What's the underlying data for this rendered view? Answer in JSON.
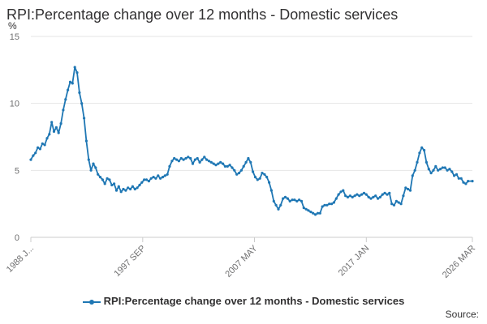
{
  "chart_data": {
    "type": "line",
    "title": "RPI:Percentage change over 12 months - Domestic services",
    "y_unit_label": "%",
    "x_tick_labels": [
      "1988 J...",
      "1997 SEP",
      "2007 MAY",
      "2017 JAN",
      "2026 MAR"
    ],
    "x_tick_positions": [
      1988.0,
      1997.67,
      2007.33,
      2017.0,
      2026.17
    ],
    "xlim": [
      1988.0,
      2026.17
    ],
    "ylim": [
      0,
      15
    ],
    "y_ticks": [
      0,
      5,
      10,
      15
    ],
    "grid": true,
    "legend_position": "bottom",
    "series": [
      {
        "name": "RPI:Percentage change over 12 months - Domestic services",
        "color": "#1f77b4",
        "points": [
          [
            1988.0,
            5.8
          ],
          [
            1988.2,
            6.1
          ],
          [
            1988.4,
            6.3
          ],
          [
            1988.6,
            6.7
          ],
          [
            1988.8,
            6.6
          ],
          [
            1989.0,
            7.0
          ],
          [
            1989.2,
            6.9
          ],
          [
            1989.4,
            7.4
          ],
          [
            1989.6,
            7.7
          ],
          [
            1989.8,
            8.6
          ],
          [
            1990.0,
            7.9
          ],
          [
            1990.2,
            8.2
          ],
          [
            1990.4,
            7.8
          ],
          [
            1990.6,
            8.5
          ],
          [
            1990.8,
            9.5
          ],
          [
            1991.0,
            10.3
          ],
          [
            1991.2,
            11.0
          ],
          [
            1991.4,
            11.6
          ],
          [
            1991.6,
            11.5
          ],
          [
            1991.8,
            12.7
          ],
          [
            1992.0,
            12.3
          ],
          [
            1992.2,
            10.8
          ],
          [
            1992.4,
            10.0
          ],
          [
            1992.6,
            8.9
          ],
          [
            1992.8,
            7.2
          ],
          [
            1993.0,
            5.8
          ],
          [
            1993.2,
            5.0
          ],
          [
            1993.4,
            5.5
          ],
          [
            1993.6,
            5.2
          ],
          [
            1993.8,
            4.7
          ],
          [
            1994.0,
            4.5
          ],
          [
            1994.2,
            4.3
          ],
          [
            1994.4,
            4.0
          ],
          [
            1994.6,
            4.4
          ],
          [
            1994.8,
            4.3
          ],
          [
            1995.0,
            3.9
          ],
          [
            1995.2,
            4.0
          ],
          [
            1995.4,
            3.5
          ],
          [
            1995.6,
            3.8
          ],
          [
            1995.8,
            3.4
          ],
          [
            1996.0,
            3.6
          ],
          [
            1996.2,
            3.5
          ],
          [
            1996.4,
            3.7
          ],
          [
            1996.6,
            3.6
          ],
          [
            1996.8,
            3.8
          ],
          [
            1997.0,
            3.6
          ],
          [
            1997.2,
            3.7
          ],
          [
            1997.4,
            3.9
          ],
          [
            1997.6,
            4.1
          ],
          [
            1997.8,
            4.3
          ],
          [
            1998.0,
            4.3
          ],
          [
            1998.2,
            4.2
          ],
          [
            1998.4,
            4.4
          ],
          [
            1998.6,
            4.5
          ],
          [
            1998.8,
            4.4
          ],
          [
            1999.0,
            4.6
          ],
          [
            1999.2,
            4.4
          ],
          [
            1999.4,
            4.5
          ],
          [
            1999.6,
            4.6
          ],
          [
            1999.8,
            4.7
          ],
          [
            2000.0,
            5.3
          ],
          [
            2000.2,
            5.7
          ],
          [
            2000.4,
            5.9
          ],
          [
            2000.6,
            5.8
          ],
          [
            2000.8,
            5.7
          ],
          [
            2001.0,
            5.9
          ],
          [
            2001.2,
            5.8
          ],
          [
            2001.4,
            5.9
          ],
          [
            2001.6,
            6.0
          ],
          [
            2001.8,
            5.9
          ],
          [
            2002.0,
            5.5
          ],
          [
            2002.2,
            5.8
          ],
          [
            2002.4,
            5.9
          ],
          [
            2002.6,
            5.6
          ],
          [
            2002.8,
            5.8
          ],
          [
            2003.0,
            6.0
          ],
          [
            2003.2,
            5.8
          ],
          [
            2003.4,
            5.7
          ],
          [
            2003.6,
            5.6
          ],
          [
            2003.8,
            5.5
          ],
          [
            2004.0,
            5.4
          ],
          [
            2004.2,
            5.5
          ],
          [
            2004.4,
            5.6
          ],
          [
            2004.6,
            5.5
          ],
          [
            2004.8,
            5.3
          ],
          [
            2005.0,
            5.3
          ],
          [
            2005.2,
            5.4
          ],
          [
            2005.4,
            5.2
          ],
          [
            2005.6,
            5.0
          ],
          [
            2005.8,
            4.7
          ],
          [
            2006.0,
            4.8
          ],
          [
            2006.2,
            5.0
          ],
          [
            2006.4,
            5.3
          ],
          [
            2006.6,
            5.6
          ],
          [
            2006.8,
            5.9
          ],
          [
            2007.0,
            5.6
          ],
          [
            2007.2,
            4.9
          ],
          [
            2007.4,
            4.5
          ],
          [
            2007.6,
            4.3
          ],
          [
            2007.8,
            4.4
          ],
          [
            2008.0,
            4.8
          ],
          [
            2008.2,
            4.7
          ],
          [
            2008.4,
            4.5
          ],
          [
            2008.6,
            4.1
          ],
          [
            2008.8,
            3.5
          ],
          [
            2009.0,
            2.7
          ],
          [
            2009.2,
            2.4
          ],
          [
            2009.4,
            2.1
          ],
          [
            2009.6,
            2.4
          ],
          [
            2009.8,
            2.9
          ],
          [
            2010.0,
            3.0
          ],
          [
            2010.2,
            2.9
          ],
          [
            2010.4,
            2.7
          ],
          [
            2010.6,
            2.8
          ],
          [
            2010.8,
            2.8
          ],
          [
            2011.0,
            2.7
          ],
          [
            2011.2,
            2.8
          ],
          [
            2011.4,
            2.7
          ],
          [
            2011.6,
            2.2
          ],
          [
            2011.8,
            2.1
          ],
          [
            2012.0,
            2.0
          ],
          [
            2012.2,
            1.9
          ],
          [
            2012.4,
            1.8
          ],
          [
            2012.6,
            1.7
          ],
          [
            2012.8,
            1.8
          ],
          [
            2013.0,
            1.8
          ],
          [
            2013.2,
            2.3
          ],
          [
            2013.4,
            2.4
          ],
          [
            2013.6,
            2.4
          ],
          [
            2013.8,
            2.5
          ],
          [
            2014.0,
            2.5
          ],
          [
            2014.2,
            2.6
          ],
          [
            2014.4,
            2.9
          ],
          [
            2014.6,
            3.2
          ],
          [
            2014.8,
            3.4
          ],
          [
            2015.0,
            3.5
          ],
          [
            2015.2,
            3.1
          ],
          [
            2015.4,
            3.0
          ],
          [
            2015.6,
            3.1
          ],
          [
            2015.8,
            3.0
          ],
          [
            2016.0,
            3.1
          ],
          [
            2016.2,
            3.2
          ],
          [
            2016.4,
            3.1
          ],
          [
            2016.6,
            3.2
          ],
          [
            2016.8,
            3.3
          ],
          [
            2017.0,
            3.2
          ],
          [
            2017.2,
            3.0
          ],
          [
            2017.4,
            2.9
          ],
          [
            2017.6,
            3.0
          ],
          [
            2017.8,
            3.1
          ],
          [
            2018.0,
            2.9
          ],
          [
            2018.2,
            3.0
          ],
          [
            2018.4,
            3.2
          ],
          [
            2018.6,
            3.3
          ],
          [
            2018.8,
            3.2
          ],
          [
            2019.0,
            3.3
          ],
          [
            2019.2,
            2.5
          ],
          [
            2019.4,
            2.4
          ],
          [
            2019.6,
            2.7
          ],
          [
            2019.8,
            2.6
          ],
          [
            2020.0,
            2.5
          ],
          [
            2020.2,
            3.1
          ],
          [
            2020.4,
            3.7
          ],
          [
            2020.6,
            3.6
          ],
          [
            2020.8,
            3.5
          ],
          [
            2021.0,
            4.6
          ],
          [
            2021.2,
            5.0
          ],
          [
            2021.4,
            5.6
          ],
          [
            2021.6,
            6.3
          ],
          [
            2021.8,
            6.7
          ],
          [
            2022.0,
            6.5
          ],
          [
            2022.2,
            5.6
          ],
          [
            2022.4,
            5.1
          ],
          [
            2022.6,
            4.8
          ],
          [
            2022.8,
            5.0
          ],
          [
            2023.0,
            5.3
          ],
          [
            2023.2,
            5.0
          ],
          [
            2023.4,
            5.1
          ],
          [
            2023.6,
            5.2
          ],
          [
            2023.8,
            5.2
          ],
          [
            2024.0,
            5.0
          ],
          [
            2024.2,
            5.1
          ],
          [
            2024.4,
            4.9
          ],
          [
            2024.6,
            4.6
          ],
          [
            2024.8,
            4.7
          ],
          [
            2025.0,
            4.4
          ],
          [
            2025.2,
            4.4
          ],
          [
            2025.4,
            4.1
          ],
          [
            2025.6,
            4.0
          ],
          [
            2025.8,
            4.2
          ],
          [
            2026.17,
            4.2
          ]
        ]
      }
    ]
  },
  "source_label": "Source:"
}
